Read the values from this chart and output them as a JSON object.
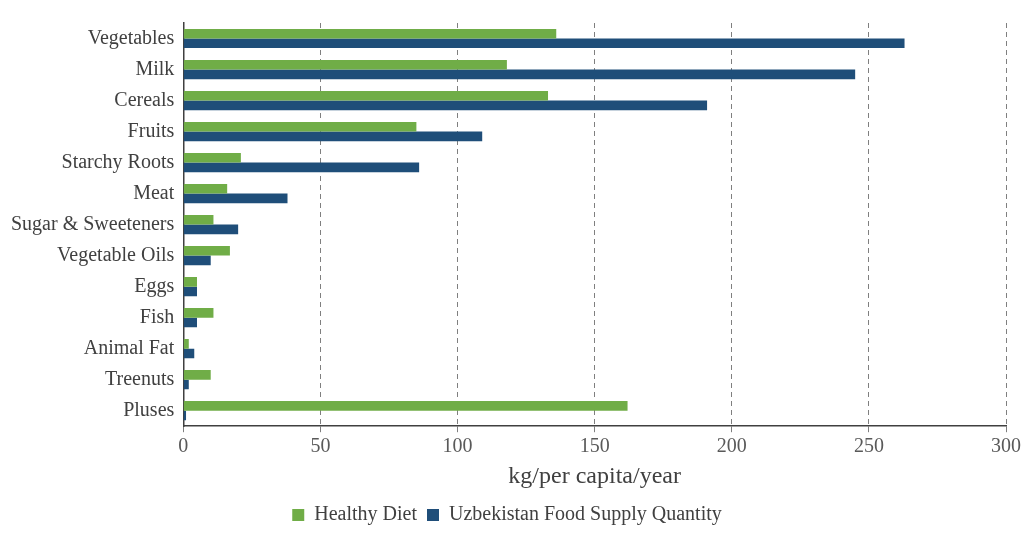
{
  "chart_data": {
    "type": "bar",
    "orientation": "horizontal",
    "xlabel": "kg/per capita/year",
    "categories": [
      "Vegetables",
      "Milk",
      "Cereals",
      "Fruits",
      "Starchy Roots",
      "Meat",
      "Sugar & Sweeteners",
      "Vegetable Oils",
      "Eggs",
      "Fish",
      "Animal Fat",
      "Treenuts",
      "Pluses"
    ],
    "series": [
      {
        "name": "Healthy Diet",
        "color": "#70ad47",
        "values": [
          136,
          118,
          133,
          85,
          21,
          16,
          11,
          17,
          5,
          11,
          2,
          10,
          162
        ]
      },
      {
        "name": "Uzbekistan Food Supply Quantity",
        "color": "#1f4e79",
        "values": [
          263,
          245,
          191,
          109,
          86,
          38,
          20,
          10,
          5,
          5,
          4,
          2,
          1
        ]
      }
    ],
    "xlim": [
      0,
      300
    ],
    "xticks": [
      0,
      50,
      100,
      150,
      200,
      250,
      300
    ],
    "grid": "x",
    "legend": "bottom"
  }
}
